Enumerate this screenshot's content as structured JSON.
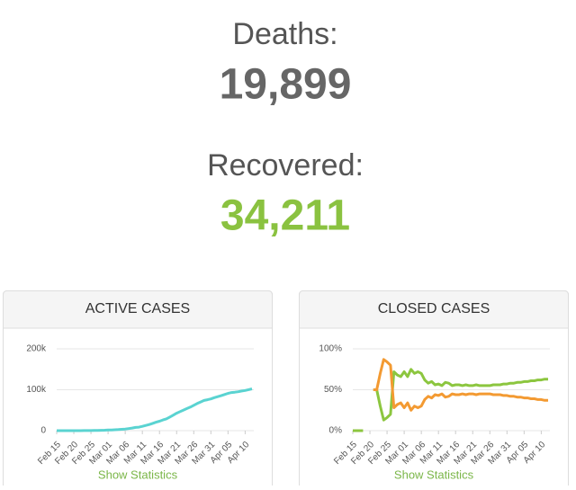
{
  "header": {
    "deaths_label": "Deaths:",
    "deaths_value": "19,899",
    "recovered_label": "Recovered:",
    "recovered_value": "34,211"
  },
  "panels": [
    {
      "link": "Show Statistics"
    },
    {
      "link": "Show Statistics"
    }
  ],
  "chart_data": [
    {
      "type": "line",
      "title": "ACTIVE CASES",
      "categories": [
        "Feb 15",
        null,
        null,
        null,
        null,
        "Feb 20",
        null,
        null,
        null,
        null,
        "Feb 25",
        null,
        null,
        null,
        null,
        "Mar 01",
        null,
        null,
        null,
        null,
        "Mar 06",
        null,
        null,
        null,
        null,
        "Mar 11",
        null,
        null,
        null,
        null,
        "Mar 16",
        null,
        null,
        null,
        null,
        "Mar 21",
        null,
        null,
        null,
        null,
        "Mar 26",
        null,
        null,
        null,
        null,
        "Mar 31",
        null,
        null,
        null,
        null,
        "Apr 05",
        null,
        null,
        null,
        null,
        "Apr 10",
        null,
        null
      ],
      "series": [
        {
          "color": "#5ad3d1",
          "values": [
            3,
            3,
            3,
            3,
            3,
            3,
            17,
            76,
            150,
            221,
            311,
            438,
            593,
            821,
            1053,
            1577,
            1835,
            2263,
            2706,
            3296,
            3916,
            5061,
            6387,
            7985,
            8514,
            10590,
            12839,
            14955,
            17750,
            20603,
            23073,
            26062,
            28710,
            33190,
            37860,
            42681,
            46638,
            50418,
            54030,
            57521,
            62013,
            66414,
            70065,
            73880,
            75528,
            77635,
            80572,
            83049,
            85388,
            88274,
            91246,
            93187,
            94067,
            95262,
            96877,
            98273,
            100269,
            102253
          ]
        }
      ],
      "ylim": [
        0,
        200000
      ],
      "yticks": [
        {
          "value": 0,
          "label": "0"
        },
        {
          "value": 100000,
          "label": "100k"
        },
        {
          "value": 200000,
          "label": "200k"
        }
      ],
      "grid": true
    },
    {
      "type": "line",
      "title": "CLOSED CASES",
      "categories": [
        "Feb 15",
        null,
        null,
        null,
        null,
        "Feb 20",
        null,
        null,
        null,
        null,
        "Feb 25",
        null,
        null,
        null,
        null,
        "Mar 01",
        null,
        null,
        null,
        null,
        "Mar 06",
        null,
        null,
        null,
        null,
        "Mar 11",
        null,
        null,
        null,
        null,
        "Mar 16",
        null,
        null,
        null,
        null,
        "Mar 21",
        null,
        null,
        null,
        null,
        "Mar 26",
        null,
        null,
        null,
        null,
        "Mar 31",
        null,
        null,
        null,
        null,
        "Apr 05",
        null,
        null,
        null,
        null,
        "Apr 10",
        null,
        null
      ],
      "series": [
        {
          "color": "#8cc63f",
          "values": [
            0,
            0,
            0,
            0,
            null,
            null,
            50,
            50,
            30,
            13,
            16,
            20,
            72,
            68,
            66,
            72,
            66,
            75,
            70,
            72,
            70,
            62,
            58,
            60,
            56,
            57,
            55,
            59,
            58,
            55,
            56,
            56,
            55,
            56,
            55,
            55,
            56,
            55,
            55,
            55,
            55,
            56,
            56,
            56,
            57,
            57,
            58,
            58,
            59,
            59,
            60,
            60,
            61,
            61,
            62,
            62,
            63,
            63
          ]
        },
        {
          "color": "#f39a32",
          "values": [
            null,
            null,
            null,
            null,
            null,
            null,
            50,
            50,
            70,
            87,
            84,
            80,
            28,
            32,
            34,
            28,
            34,
            25,
            30,
            28,
            30,
            38,
            42,
            40,
            44,
            43,
            45,
            41,
            42,
            45,
            44,
            44,
            45,
            44,
            45,
            45,
            44,
            45,
            45,
            45,
            45,
            44,
            44,
            44,
            43,
            43,
            42,
            42,
            41,
            41,
            40,
            40,
            39,
            39,
            38,
            38,
            37,
            37
          ]
        }
      ],
      "ylim": [
        0,
        100
      ],
      "yticks": [
        {
          "value": 0,
          "label": "0%"
        },
        {
          "value": 50,
          "label": "50%"
        },
        {
          "value": 100,
          "label": "100%"
        }
      ],
      "grid": true
    }
  ]
}
